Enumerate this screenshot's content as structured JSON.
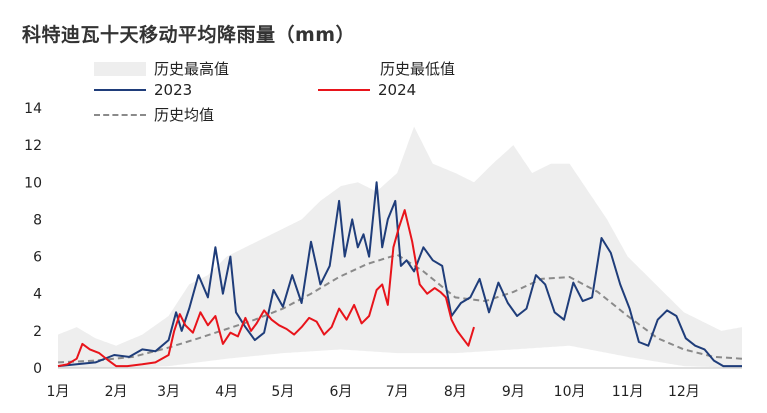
{
  "title": "科特迪瓦十天移动平均降雨量（mm）",
  "legend": [
    {
      "key": "max",
      "label": "历史最高值",
      "swatch": "band"
    },
    {
      "key": "min",
      "label": "历史最低值",
      "swatch": "none"
    },
    {
      "key": "y2023",
      "label": "2023",
      "swatch": "line"
    },
    {
      "key": "y2024",
      "label": "2024",
      "swatch": "line-red"
    },
    {
      "key": "avg",
      "label": "历史均值",
      "swatch": "dash"
    }
  ],
  "colors": {
    "band": "#eeeeee",
    "y2023": "#1f3d7a",
    "y2024": "#e8141b",
    "avg": "#8a8a8a"
  },
  "chart_data": {
    "type": "area",
    "title": "科特迪瓦十天移动平均降雨量（mm）",
    "xlabel": "",
    "ylabel": "",
    "ylim": [
      0,
      14
    ],
    "yticks": [
      0,
      2,
      4,
      6,
      8,
      10,
      12,
      14
    ],
    "xlim": [
      0,
      365
    ],
    "xticks": [
      {
        "label": "1月",
        "day": 0
      },
      {
        "label": "2月",
        "day": 31
      },
      {
        "label": "3月",
        "day": 59
      },
      {
        "label": "4月",
        "day": 90
      },
      {
        "label": "5月",
        "day": 120
      },
      {
        "label": "6月",
        "day": 151
      },
      {
        "label": "7月",
        "day": 181
      },
      {
        "label": "8月",
        "day": 212
      },
      {
        "label": "9月",
        "day": 243
      },
      {
        "label": "10月",
        "day": 273
      },
      {
        "label": "11月",
        "day": 304
      },
      {
        "label": "12月",
        "day": 334
      }
    ],
    "grid": false,
    "legend_position": "top",
    "series": [
      {
        "name": "历史最高值",
        "kind": "band",
        "x": [
          0,
          10,
          20,
          31,
          45,
          59,
          70,
          80,
          90,
          100,
          110,
          120,
          130,
          140,
          151,
          160,
          170,
          181,
          190,
          200,
          212,
          222,
          232,
          243,
          253,
          263,
          273,
          283,
          293,
          304,
          314,
          324,
          334,
          344,
          354,
          365
        ],
        "values": [
          1.8,
          2.2,
          1.6,
          1.2,
          1.8,
          2.8,
          4.5,
          5.0,
          6.0,
          6.5,
          7.0,
          7.5,
          8.0,
          9.0,
          9.8,
          10.0,
          9.5,
          10.5,
          13.0,
          11.0,
          10.5,
          10.0,
          11.0,
          12.0,
          10.5,
          11.0,
          11.0,
          9.5,
          8.0,
          6.0,
          5.0,
          4.0,
          3.0,
          2.5,
          2.0,
          2.2
        ]
      },
      {
        "name": "历史最低值",
        "kind": "band-low",
        "x": [
          0,
          31,
          59,
          90,
          120,
          151,
          181,
          212,
          243,
          273,
          304,
          334,
          365
        ],
        "values": [
          0,
          0,
          0.1,
          0.5,
          0.8,
          1.0,
          0.8,
          0.8,
          1.0,
          1.2,
          0.6,
          0.1,
          0
        ]
      },
      {
        "name": "2023",
        "x": [
          0,
          10,
          20,
          30,
          38,
          45,
          52,
          59,
          63,
          66,
          70,
          75,
          80,
          84,
          88,
          92,
          95,
          100,
          105,
          110,
          115,
          120,
          125,
          130,
          135,
          140,
          145,
          150,
          153,
          157,
          160,
          163,
          166,
          170,
          173,
          176,
          180,
          183,
          186,
          190,
          195,
          200,
          205,
          210,
          215,
          220,
          225,
          230,
          235,
          240,
          245,
          250,
          255,
          260,
          265,
          270,
          275,
          280,
          285,
          290,
          295,
          300,
          305,
          310,
          315,
          320,
          325,
          330,
          335,
          340,
          345,
          350,
          355,
          360,
          365
        ],
        "values": [
          0.1,
          0.2,
          0.3,
          0.7,
          0.6,
          1.0,
          0.9,
          1.5,
          3.0,
          2.0,
          3.2,
          5.0,
          3.8,
          6.5,
          4.0,
          6.0,
          3.0,
          2.2,
          1.5,
          1.9,
          4.2,
          3.3,
          5.0,
          3.5,
          6.8,
          4.5,
          5.5,
          9.0,
          6.0,
          8.0,
          6.5,
          7.2,
          6.0,
          10.0,
          6.5,
          8.0,
          9.0,
          5.5,
          5.8,
          5.2,
          6.5,
          5.8,
          5.5,
          2.8,
          3.5,
          3.8,
          4.8,
          3.0,
          4.6,
          3.5,
          2.8,
          3.2,
          5.0,
          4.5,
          3.0,
          2.6,
          4.6,
          3.6,
          3.8,
          7.0,
          6.2,
          4.5,
          3.2,
          1.4,
          1.2,
          2.6,
          3.1,
          2.8,
          1.6,
          1.2,
          1.0,
          0.4,
          0.1,
          0.1,
          0.1
        ]
      },
      {
        "name": "2024",
        "x": [
          0,
          5,
          10,
          13,
          17,
          22,
          27,
          31,
          37,
          45,
          52,
          59,
          62,
          65,
          68,
          72,
          76,
          80,
          84,
          88,
          92,
          96,
          100,
          103,
          106,
          110,
          114,
          118,
          122,
          126,
          130,
          134,
          138,
          142,
          146,
          150,
          154,
          158,
          162,
          166,
          170,
          173,
          176,
          179,
          182,
          185,
          189,
          193,
          197,
          201,
          204,
          207,
          210,
          213,
          216,
          219,
          222
        ],
        "values": [
          0.1,
          0.2,
          0.5,
          1.3,
          1.0,
          0.8,
          0.4,
          0.1,
          0.1,
          0.2,
          0.3,
          0.7,
          2.0,
          2.9,
          2.3,
          1.9,
          3.0,
          2.3,
          2.8,
          1.3,
          1.9,
          1.7,
          2.7,
          2.0,
          2.4,
          3.1,
          2.6,
          2.3,
          2.1,
          1.8,
          2.2,
          2.7,
          2.5,
          1.8,
          2.2,
          3.2,
          2.6,
          3.4,
          2.4,
          2.8,
          4.2,
          4.5,
          3.4,
          6.5,
          7.6,
          8.5,
          6.8,
          4.5,
          4.0,
          4.3,
          4.1,
          3.8,
          2.6,
          2.0,
          1.6,
          1.2,
          2.2
        ]
      },
      {
        "name": "历史均值",
        "kind": "dashed",
        "x": [
          0,
          20,
          40,
          59,
          75,
          90,
          105,
          120,
          135,
          150,
          165,
          181,
          195,
          212,
          228,
          243,
          258,
          273,
          288,
          304,
          320,
          334,
          350,
          365
        ],
        "values": [
          0.3,
          0.4,
          0.6,
          1.1,
          1.6,
          2.1,
          2.6,
          3.2,
          4.0,
          4.9,
          5.6,
          6.1,
          5.2,
          3.8,
          3.6,
          4.1,
          4.8,
          4.9,
          4.1,
          2.8,
          1.6,
          1.0,
          0.6,
          0.5
        ]
      }
    ]
  }
}
